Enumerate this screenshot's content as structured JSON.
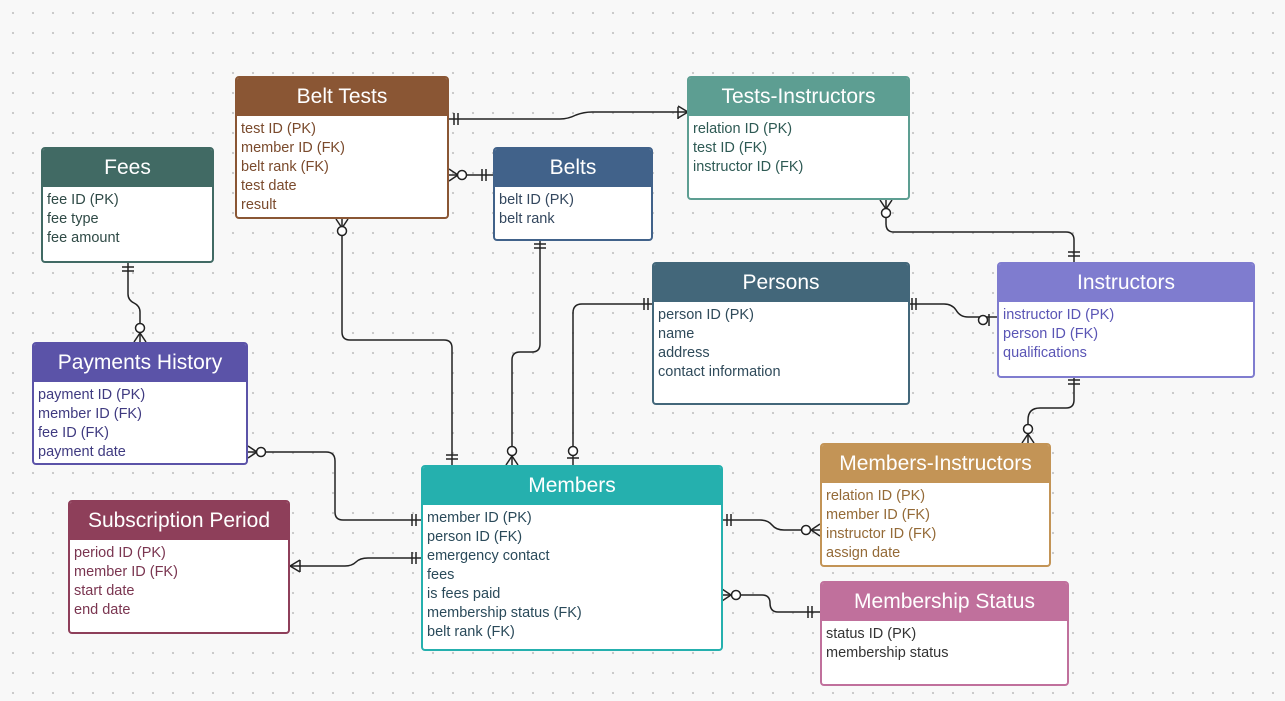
{
  "entities": [
    {
      "id": "fees",
      "name": "Fees",
      "color": "#416a64",
      "text": "#2f4a46",
      "fields": [
        "fee ID (PK)",
        "fee type",
        "fee amount"
      ]
    },
    {
      "id": "payments-history",
      "name": "Payments History",
      "color": "#5b53a8",
      "text": "#3f3a80",
      "fields": [
        "payment ID (PK)",
        "member ID (FK)",
        "fee ID (FK)",
        "payment date"
      ]
    },
    {
      "id": "belt-tests",
      "name": "Belt Tests",
      "color": "#8a5634",
      "text": "#7a4a2c",
      "fields": [
        "test ID (PK)",
        "member ID (FK)",
        "belt rank (FK)",
        "test date",
        "result"
      ]
    },
    {
      "id": "belts",
      "name": "Belts",
      "color": "#41628a",
      "text": "#33475e",
      "fields": [
        "belt ID (PK)",
        "belt rank"
      ]
    },
    {
      "id": "tests-instructors",
      "name": "Tests-Instructors",
      "color": "#5d9e92",
      "text": "#2e5a54",
      "fields": [
        "relation ID (PK)",
        "test ID (FK)",
        "instructor ID (FK)"
      ]
    },
    {
      "id": "persons",
      "name": "Persons",
      "color": "#43677a",
      "text": "#2f4a5a",
      "fields": [
        "person ID (PK)",
        "name",
        "address",
        "contact information"
      ]
    },
    {
      "id": "instructors",
      "name": "Instructors",
      "color": "#7f7ccf",
      "text": "#5a55b5",
      "fields": [
        "instructor ID (PK)",
        "person ID (FK)",
        "qualifications"
      ]
    },
    {
      "id": "members",
      "name": "Members",
      "color": "#25b0ae",
      "text": "#2a4a5a",
      "fields": [
        "member ID (PK)",
        "person ID (FK)",
        "emergency contact",
        "fees",
        "is fees paid",
        "membership status (FK)",
        "belt rank (FK)"
      ]
    },
    {
      "id": "subscription-period",
      "name": "Subscription Period",
      "color": "#8e3f5a",
      "text": "#7a3550",
      "fields": [
        "period ID (PK)",
        "member ID (FK)",
        "start date",
        "end date"
      ]
    },
    {
      "id": "members-instructors",
      "name": "Members-Instructors",
      "color": "#c39456",
      "text": "#946a37",
      "fields": [
        "relation ID (PK)",
        "member ID (FK)",
        "instructor ID (FK)",
        "assign date"
      ]
    },
    {
      "id": "membership-status",
      "name": "Membership Status",
      "color": "#c0709c",
      "text": "#333333",
      "fields": [
        "status ID (PK)",
        "membership status"
      ]
    }
  ]
}
